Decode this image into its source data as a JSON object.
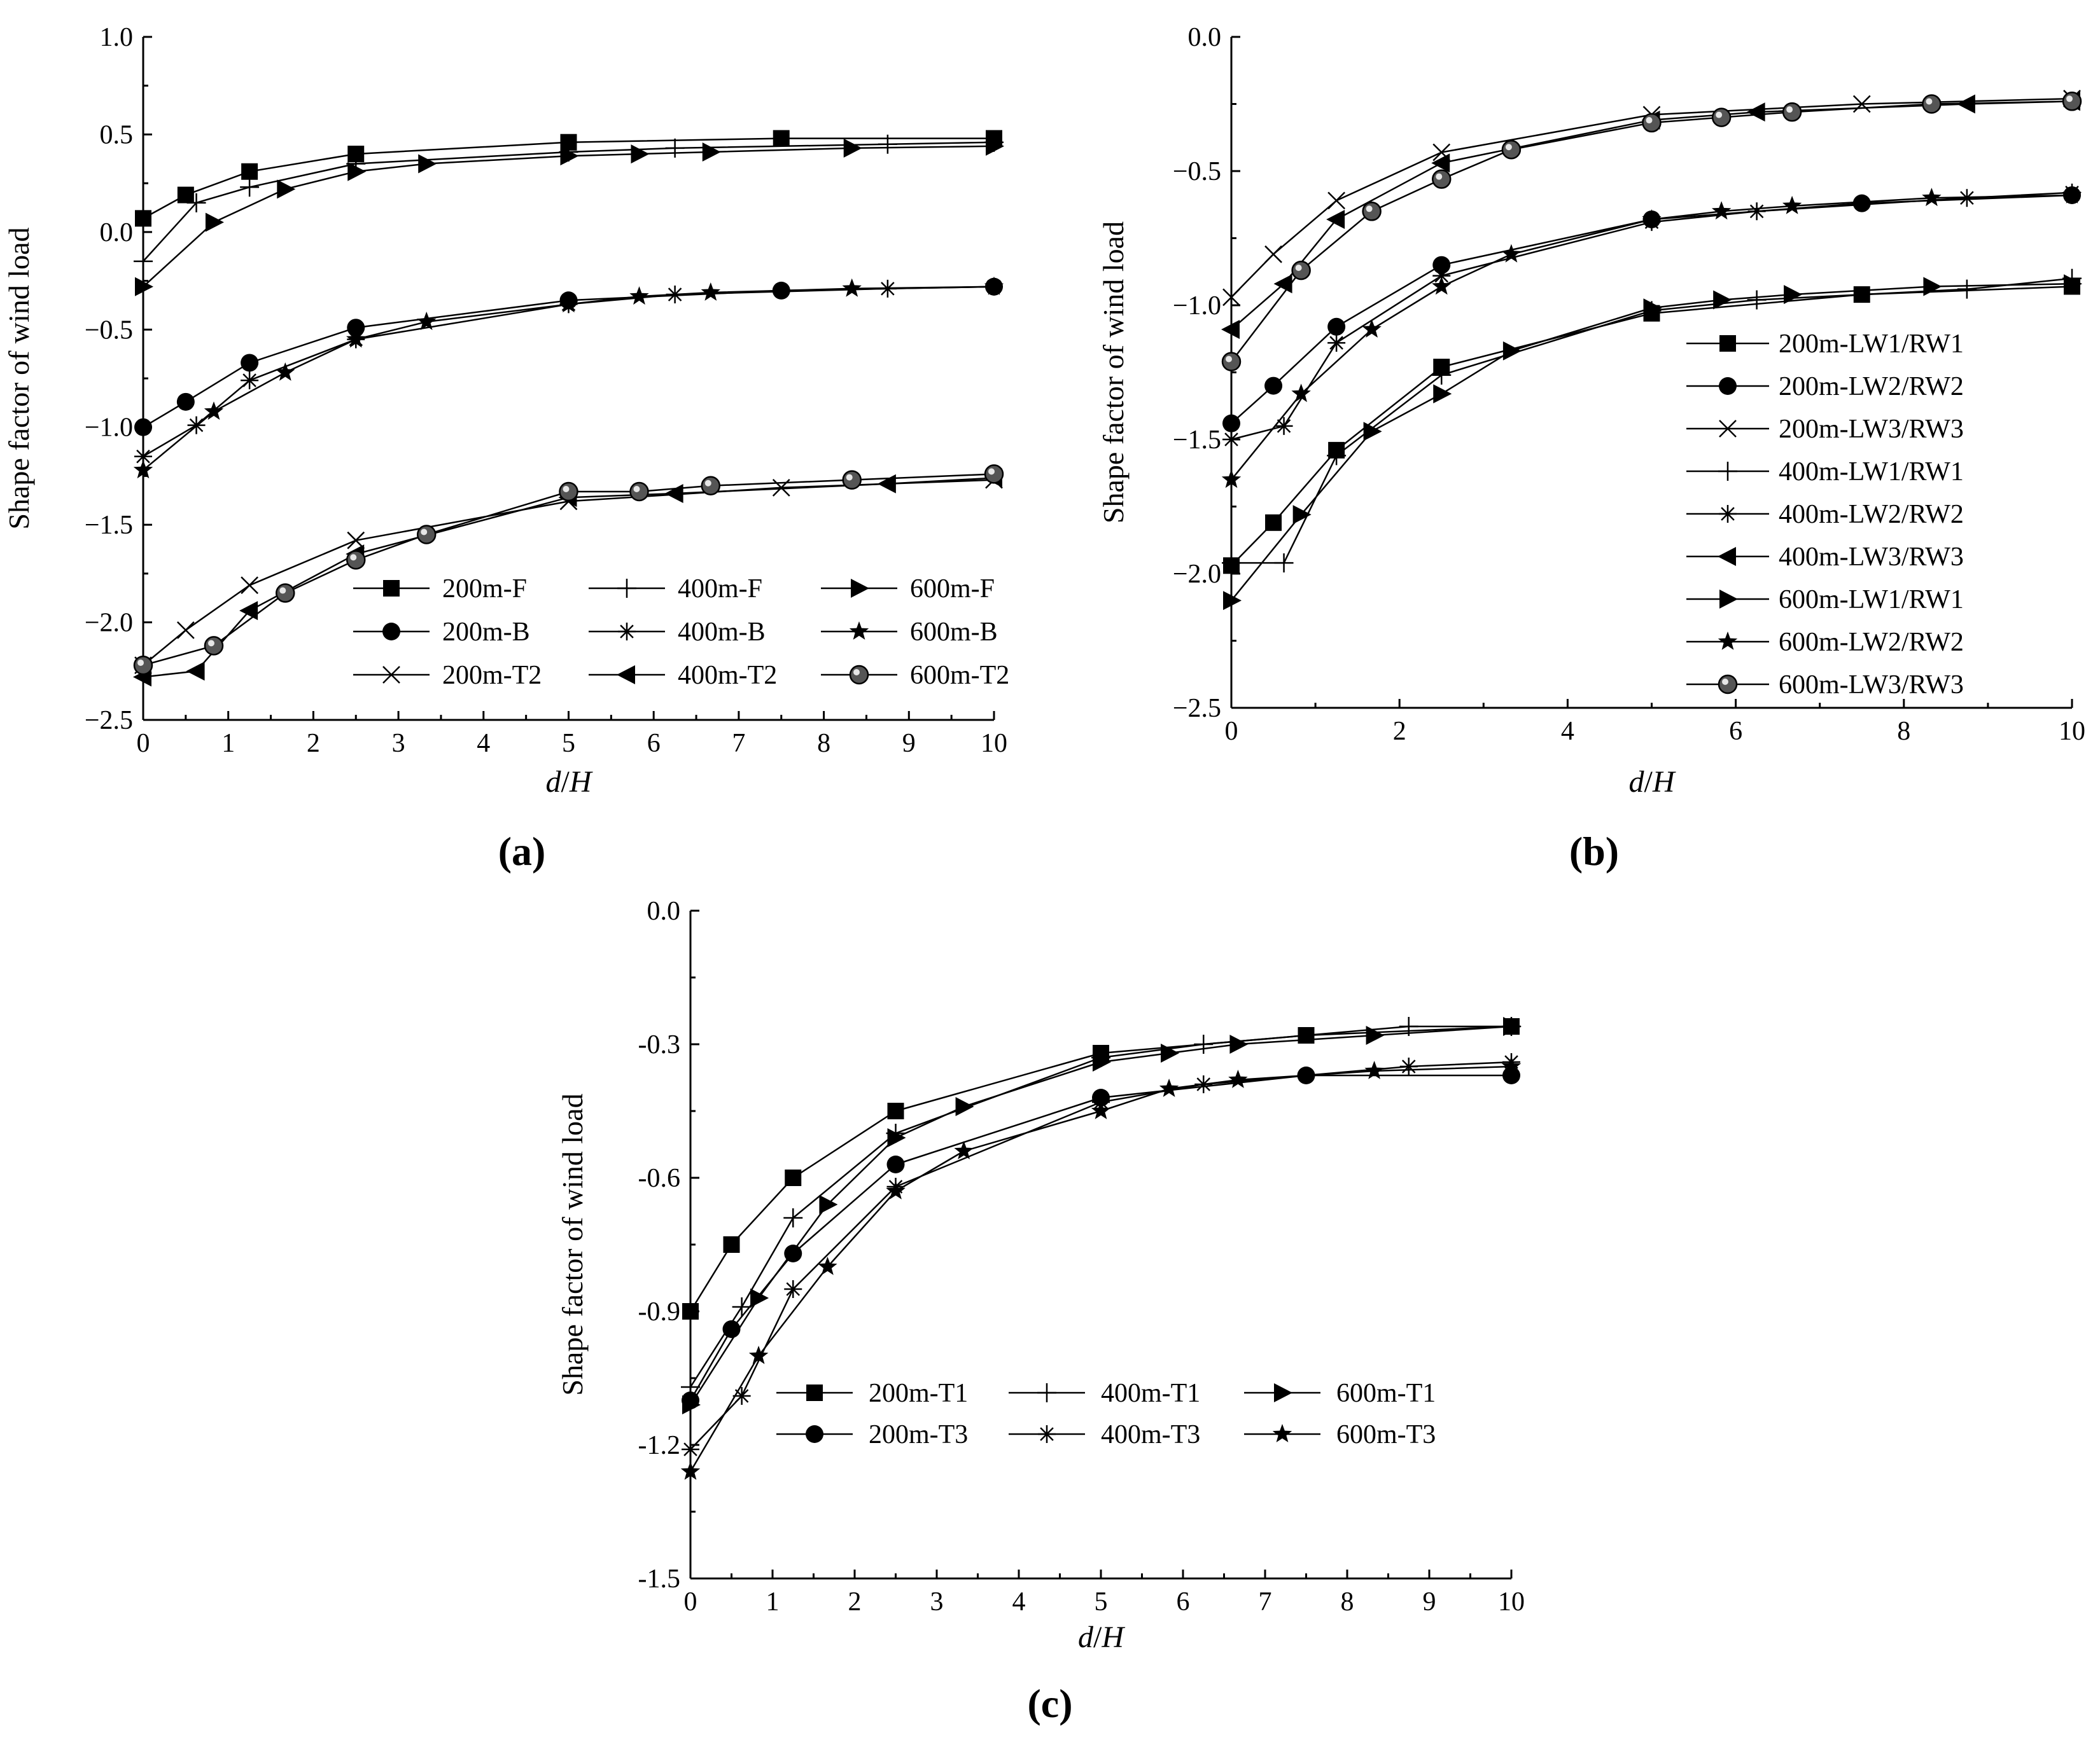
{
  "chart_data": [
    {
      "type": "line",
      "panel_label": "(a)",
      "xlabel_var": "d",
      "xlabel_sep": "/",
      "xlabel_var2": "H",
      "ylabel": "Shape factor of wind load",
      "xlim": [
        0,
        10
      ],
      "ylim": [
        -2.5,
        1.0
      ],
      "xticks": [
        0,
        1,
        2,
        3,
        4,
        5,
        6,
        7,
        8,
        9,
        10
      ],
      "yticks": [
        1.0,
        0.5,
        0.0,
        -0.5,
        -1.0,
        -1.5,
        -2.0,
        -2.5
      ],
      "ytick_labels": [
        "1.0",
        "0.5",
        "0.0",
        "−0.5",
        "−1.0",
        "−1.5",
        "−2.0",
        "−2.5"
      ],
      "legend_cols": 3,
      "series": [
        {
          "name": "200m-F",
          "marker": "square",
          "x": [
            0,
            0.5,
            1.25,
            2.5,
            5,
            7.5,
            10
          ],
          "y": [
            0.07,
            0.19,
            0.31,
            0.4,
            0.46,
            0.48,
            0.48
          ]
        },
        {
          "name": "400m-F",
          "marker": "plus",
          "x": [
            0,
            0.625,
            1.25,
            2.5,
            5,
            6.25,
            8.75,
            10
          ],
          "y": [
            -0.15,
            0.15,
            0.23,
            0.35,
            0.41,
            0.43,
            0.45,
            0.46
          ]
        },
        {
          "name": "600m-F",
          "marker": "triangle-right",
          "x": [
            0,
            0.83,
            1.67,
            2.5,
            3.33,
            5,
            5.83,
            6.67,
            8.33,
            10
          ],
          "y": [
            -0.28,
            0.05,
            0.22,
            0.31,
            0.35,
            0.39,
            0.4,
            0.41,
            0.43,
            0.44
          ]
        },
        {
          "name": "200m-B",
          "marker": "circle",
          "x": [
            0,
            0.5,
            1.25,
            2.5,
            5,
            7.5,
            10
          ],
          "y": [
            -1.0,
            -0.87,
            -0.67,
            -0.49,
            -0.35,
            -0.3,
            -0.28
          ]
        },
        {
          "name": "400m-B",
          "marker": "asterisk",
          "x": [
            0,
            0.625,
            1.25,
            2.5,
            5,
            6.25,
            8.75,
            10
          ],
          "y": [
            -1.15,
            -0.99,
            -0.76,
            -0.55,
            -0.37,
            -0.32,
            -0.29,
            -0.28
          ]
        },
        {
          "name": "600m-B",
          "marker": "star",
          "x": [
            0,
            0.83,
            1.67,
            2.5,
            3.33,
            5,
            5.83,
            6.67,
            8.33,
            10
          ],
          "y": [
            -1.22,
            -0.92,
            -0.72,
            -0.55,
            -0.46,
            -0.37,
            -0.33,
            -0.31,
            -0.29,
            -0.28
          ]
        },
        {
          "name": "200m-T2",
          "marker": "x",
          "x": [
            0,
            0.5,
            1.25,
            2.5,
            5,
            7.5,
            10
          ],
          "y": [
            -2.22,
            -2.04,
            -1.81,
            -1.58,
            -1.38,
            -1.31,
            -1.27
          ]
        },
        {
          "name": "400m-T2",
          "marker": "triangle-left",
          "x": [
            0,
            0.625,
            1.25,
            2.5,
            5,
            6.25,
            8.75,
            10
          ],
          "y": [
            -2.28,
            -2.25,
            -1.94,
            -1.65,
            -1.36,
            -1.34,
            -1.29,
            -1.26
          ]
        },
        {
          "name": "600m-T2",
          "marker": "sphere",
          "x": [
            0,
            0.83,
            1.67,
            2.5,
            3.33,
            5,
            5.83,
            6.67,
            8.33,
            10
          ],
          "y": [
            -2.22,
            -2.12,
            -1.85,
            -1.68,
            -1.55,
            -1.33,
            -1.33,
            -1.3,
            -1.27,
            -1.24
          ]
        }
      ]
    },
    {
      "type": "line",
      "panel_label": "(b)",
      "xlabel_var": "d",
      "xlabel_sep": "/",
      "xlabel_var2": "H",
      "ylabel": "Shape factor of wind load",
      "xlim": [
        0,
        10
      ],
      "ylim": [
        -2.5,
        0.0
      ],
      "xticks": [
        0,
        2,
        4,
        6,
        8,
        10
      ],
      "yticks": [
        0.0,
        -0.5,
        -1.0,
        -1.5,
        -2.0,
        -2.5
      ],
      "ytick_labels": [
        "0.0",
        "−0.5",
        "−1.0",
        "−1.5",
        "−2.0",
        "−2.5"
      ],
      "legend_cols": 1,
      "series": [
        {
          "name": "200m-LW1/RW1",
          "marker": "square",
          "x": [
            0,
            0.5,
            1.25,
            2.5,
            5,
            7.5,
            10
          ],
          "y": [
            -1.97,
            -1.81,
            -1.54,
            -1.23,
            -1.03,
            -0.96,
            -0.93
          ]
        },
        {
          "name": "200m-LW2/RW2",
          "marker": "circle",
          "x": [
            0,
            0.5,
            1.25,
            2.5,
            5,
            7.5,
            10
          ],
          "y": [
            -1.44,
            -1.3,
            -1.08,
            -0.85,
            -0.68,
            -0.62,
            -0.59
          ]
        },
        {
          "name": "200m-LW3/RW3",
          "marker": "x",
          "x": [
            0,
            0.5,
            1.25,
            2.5,
            5,
            7.5,
            10
          ],
          "y": [
            -0.97,
            -0.81,
            -0.61,
            -0.43,
            -0.29,
            -0.25,
            -0.23
          ]
        },
        {
          "name": "400m-LW1/RW1",
          "marker": "plus",
          "x": [
            0,
            0.625,
            1.25,
            2.5,
            5,
            6.25,
            8.75,
            10
          ],
          "y": [
            -1.96,
            -1.96,
            -1.56,
            -1.26,
            -1.02,
            -0.98,
            -0.94,
            -0.9
          ]
        },
        {
          "name": "400m-LW2/RW2",
          "marker": "asterisk",
          "x": [
            0,
            0.625,
            1.25,
            2.5,
            5,
            6.25,
            8.75,
            10
          ],
          "y": [
            -1.5,
            -1.45,
            -1.14,
            -0.89,
            -0.69,
            -0.65,
            -0.6,
            -0.58
          ]
        },
        {
          "name": "400m-LW3/RW3",
          "marker": "triangle-left",
          "x": [
            0,
            0.625,
            1.25,
            2.5,
            5,
            6.25,
            8.75,
            10
          ],
          "y": [
            -1.09,
            -0.92,
            -0.68,
            -0.47,
            -0.31,
            -0.28,
            -0.25,
            -0.24
          ]
        },
        {
          "name": "600m-LW1/RW1",
          "marker": "triangle-right",
          "x": [
            0,
            0.83,
            1.67,
            2.5,
            3.33,
            5,
            5.83,
            6.67,
            8.33,
            10
          ],
          "y": [
            -2.1,
            -1.78,
            -1.47,
            -1.33,
            -1.17,
            -1.01,
            -0.98,
            -0.96,
            -0.93,
            -0.92
          ]
        },
        {
          "name": "600m-LW2/RW2",
          "marker": "star",
          "x": [
            0,
            0.83,
            1.67,
            2.5,
            3.33,
            5,
            5.83,
            6.67,
            8.33,
            10
          ],
          "y": [
            -1.65,
            -1.33,
            -1.09,
            -0.93,
            -0.81,
            -0.68,
            -0.65,
            -0.63,
            -0.6,
            -0.59
          ]
        },
        {
          "name": "600m-LW3/RW3",
          "marker": "sphere",
          "x": [
            0,
            0.83,
            1.67,
            2.5,
            3.33,
            5,
            5.83,
            6.67,
            8.33,
            10
          ],
          "y": [
            -1.21,
            -0.87,
            -0.65,
            -0.53,
            -0.42,
            -0.32,
            -0.3,
            -0.28,
            -0.25,
            -0.24
          ]
        }
      ]
    },
    {
      "type": "line",
      "panel_label": "(c)",
      "xlabel_var": "d",
      "xlabel_sep": "/",
      "xlabel_var2": "H",
      "ylabel": "Shape factor of wind load",
      "xlim": [
        0,
        10
      ],
      "ylim": [
        -1.5,
        0.0
      ],
      "xticks": [
        0,
        1,
        2,
        3,
        4,
        5,
        6,
        7,
        8,
        9,
        10
      ],
      "yticks": [
        0.0,
        -0.3,
        -0.6,
        -0.9,
        -1.2,
        -1.5
      ],
      "ytick_labels": [
        "0.0",
        "-0.3",
        "-0.6",
        "-0.9",
        "-1.2",
        "-1.5"
      ],
      "legend_cols": 3,
      "series": [
        {
          "name": "200m-T1",
          "marker": "square",
          "x": [
            0,
            0.5,
            1.25,
            2.5,
            5,
            7.5,
            10
          ],
          "y": [
            -0.9,
            -0.75,
            -0.6,
            -0.45,
            -0.32,
            -0.28,
            -0.26
          ]
        },
        {
          "name": "400m-T1",
          "marker": "plus",
          "x": [
            0,
            0.625,
            1.25,
            2.5,
            5,
            6.25,
            8.75,
            10
          ],
          "y": [
            -1.07,
            -0.89,
            -0.69,
            -0.5,
            -0.33,
            -0.3,
            -0.26,
            -0.26
          ]
        },
        {
          "name": "600m-T1",
          "marker": "triangle-right",
          "x": [
            0,
            0.83,
            1.67,
            2.5,
            3.33,
            5,
            5.83,
            6.67,
            8.33,
            10
          ],
          "y": [
            -1.11,
            -0.87,
            -0.66,
            -0.51,
            -0.44,
            -0.34,
            -0.32,
            -0.3,
            -0.28,
            -0.26
          ]
        },
        {
          "name": "200m-T3",
          "marker": "circle",
          "x": [
            0,
            0.5,
            1.25,
            2.5,
            5,
            7.5,
            10
          ],
          "y": [
            -1.1,
            -0.94,
            -0.77,
            -0.57,
            -0.42,
            -0.37,
            -0.37
          ]
        },
        {
          "name": "400m-T3",
          "marker": "asterisk",
          "x": [
            0,
            0.625,
            1.25,
            2.5,
            5,
            6.25,
            8.75,
            10
          ],
          "y": [
            -1.21,
            -1.09,
            -0.85,
            -0.62,
            -0.43,
            -0.39,
            -0.35,
            -0.34
          ]
        },
        {
          "name": "600m-T3",
          "marker": "star",
          "x": [
            0,
            0.83,
            1.67,
            2.5,
            3.33,
            5,
            5.83,
            6.67,
            8.33,
            10
          ],
          "y": [
            -1.26,
            -1.0,
            -0.8,
            -0.63,
            -0.54,
            -0.45,
            -0.4,
            -0.38,
            -0.36,
            -0.35
          ]
        }
      ]
    }
  ]
}
